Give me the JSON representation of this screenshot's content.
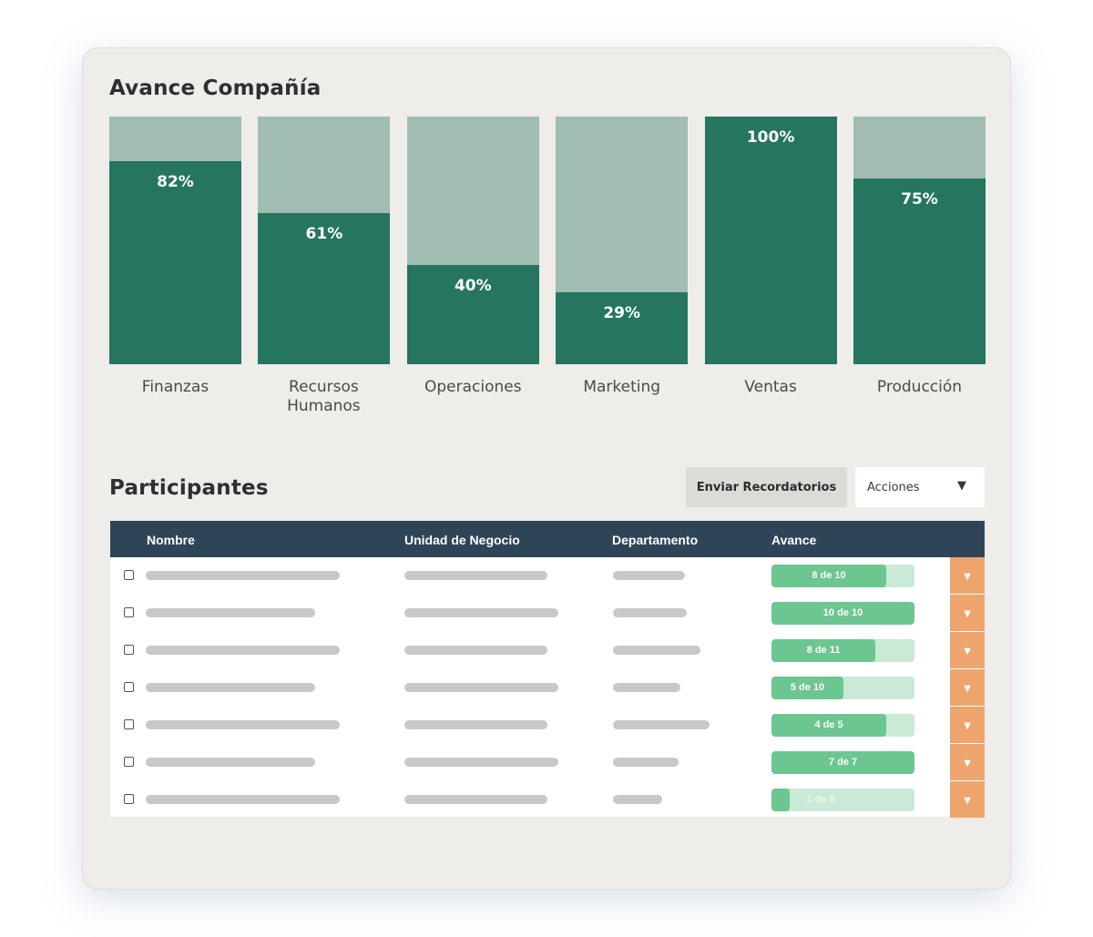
{
  "company": {
    "title": "Avance Compañía",
    "chart_data": {
      "type": "bar",
      "categories": [
        "Finanzas",
        "Recursos Humanos",
        "Operaciones",
        "Marketing",
        "Ventas",
        "Producción"
      ],
      "values": [
        82,
        61,
        40,
        29,
        100,
        75
      ],
      "labels": [
        "82%",
        "61%",
        "40%",
        "29%",
        "100%",
        "75%"
      ],
      "ylim": [
        0,
        100
      ],
      "colors": {
        "fill": "#257560",
        "remainder": "#a1bcb0"
      }
    }
  },
  "participants": {
    "title": "Participantes",
    "reminders_button": "Enviar Recordatorios",
    "actions_select": "Acciones",
    "columns": [
      "Nombre",
      "Unidad de Negocio",
      "Departamento",
      "Avance"
    ],
    "rows": [
      {
        "progress_label": "8 de 10",
        "done": 8,
        "total": 10
      },
      {
        "progress_label": "10 de 10",
        "done": 10,
        "total": 10
      },
      {
        "progress_label": "8 de 11",
        "done": 8,
        "total": 11
      },
      {
        "progress_label": "5 de 10",
        "done": 5,
        "total": 10
      },
      {
        "progress_label": "4 de 5",
        "done": 4,
        "total": 5
      },
      {
        "progress_label": "7 de 7",
        "done": 7,
        "total": 7
      },
      {
        "progress_label": "1 de 8",
        "done": 1,
        "total": 8
      }
    ],
    "row_action_icon": "chevron-down-icon",
    "colors": {
      "header": "#2e4558",
      "progress": "#6cc68f",
      "progress_track": "#c9ead4",
      "row_action": "#eda56d"
    }
  }
}
